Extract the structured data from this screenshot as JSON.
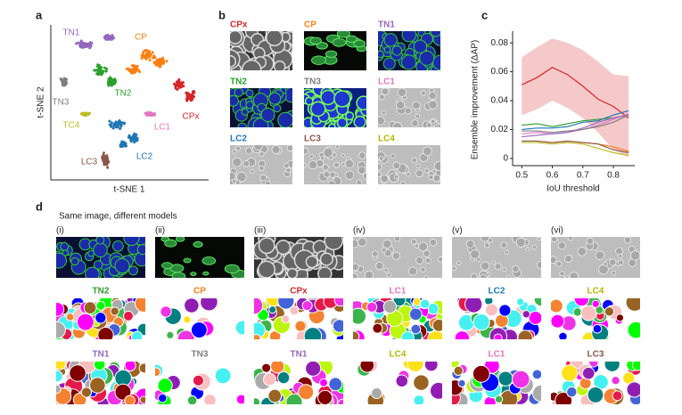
{
  "panel_labels": [
    "a",
    "b",
    "c",
    "d"
  ],
  "tsne": {
    "xlabel": "t-SNE 1",
    "ylabel": "t-SNE 2",
    "clusters": [
      {
        "name": "TN1",
        "color": "#9467bd"
      },
      {
        "name": "CP",
        "color": "#ff7f0e"
      },
      {
        "name": "TN2",
        "color": "#2ca02c"
      },
      {
        "name": "TN3",
        "color": "#7f7f7f"
      },
      {
        "name": "CPx",
        "color": "#d62728"
      },
      {
        "name": "TC4",
        "color": "#bcbd22"
      },
      {
        "name": "LC1",
        "color": "#e377c2"
      },
      {
        "name": "LC2",
        "color": "#1f77b4"
      },
      {
        "name": "LC3",
        "color": "#8c564b"
      }
    ]
  },
  "image_grid": {
    "cells": [
      {
        "label": "CPx",
        "color": "#d62728"
      },
      {
        "label": "CP",
        "color": "#ff7f0e"
      },
      {
        "label": "TN1",
        "color": "#9467bd"
      },
      {
        "label": "TN2",
        "color": "#2ca02c"
      },
      {
        "label": "TN3",
        "color": "#7f7f7f"
      },
      {
        "label": "LC1",
        "color": "#e377c2"
      },
      {
        "label": "LC2",
        "color": "#1f77b4"
      },
      {
        "label": "LC3",
        "color": "#8c564b"
      },
      {
        "label": "LC4",
        "color": "#b5b800"
      }
    ]
  },
  "chart_data": {
    "type": "line",
    "xlabel": "IoU threshold",
    "ylabel": "Ensemble improvement (ΔAP)",
    "x": [
      0.5,
      0.55,
      0.6,
      0.65,
      0.7,
      0.75,
      0.8,
      0.85
    ],
    "xlim": [
      0.47,
      0.87
    ],
    "ylim": [
      -0.005,
      0.085
    ],
    "xticks": [
      0.5,
      0.6,
      0.7,
      0.8
    ],
    "yticks": [
      0,
      0.02,
      0.04,
      0.06,
      0.08
    ],
    "series": [
      {
        "color": "#d62728",
        "values": [
          0.051,
          0.056,
          0.063,
          0.058,
          0.05,
          0.041,
          0.036,
          0.028
        ],
        "lower": [
          0.03,
          0.034,
          0.04,
          0.035,
          0.028,
          0.018,
          0.006,
          0.001
        ],
        "upper": [
          0.07,
          0.077,
          0.083,
          0.08,
          0.075,
          0.067,
          0.058,
          0.057
        ]
      },
      {
        "color": "#2ca02c",
        "values": [
          0.023,
          0.024,
          0.022,
          0.024,
          0.026,
          0.027,
          0.028,
          0.03
        ]
      },
      {
        "color": "#1f77b4",
        "values": [
          0.02,
          0.021,
          0.021,
          0.022,
          0.025,
          0.026,
          0.03,
          0.033
        ]
      },
      {
        "color": "#e377c2",
        "values": [
          0.017,
          0.018,
          0.017,
          0.018,
          0.02,
          0.023,
          0.027,
          0.031
        ]
      },
      {
        "color": "#9467bd",
        "values": [
          0.015,
          0.016,
          0.017,
          0.018,
          0.021,
          0.025,
          0.028,
          0.03
        ]
      },
      {
        "color": "#7f7f7f",
        "values": [
          0.019,
          0.019,
          0.018,
          0.019,
          0.02,
          0.022,
          0.025,
          0.03
        ]
      },
      {
        "color": "#ff7f0e",
        "values": [
          0.012,
          0.012,
          0.011,
          0.012,
          0.011,
          0.01,
          0.008,
          0.005
        ]
      },
      {
        "color": "#8c564b",
        "values": [
          0.012,
          0.012,
          0.011,
          0.012,
          0.011,
          0.01,
          0.006,
          0.004
        ]
      },
      {
        "color": "#bcbd22",
        "values": [
          0.011,
          0.011,
          0.01,
          0.011,
          0.01,
          0.007,
          0.004,
          0.002
        ]
      }
    ]
  },
  "comparison": {
    "title": "Same image, different models",
    "columns": [
      {
        "numeral": "(i)",
        "top": {
          "label": "TN2",
          "color": "#2ca02c"
        },
        "bottom": {
          "label": "TN1",
          "color": "#9467bd"
        }
      },
      {
        "numeral": "(ii)",
        "top": {
          "label": "CP",
          "color": "#ff7f0e"
        },
        "bottom": {
          "label": "TN3",
          "color": "#7f7f7f"
        }
      },
      {
        "numeral": "(iii)",
        "top": {
          "label": "CPx",
          "color": "#d62728"
        },
        "bottom": {
          "label": "TN1",
          "color": "#9467bd"
        }
      },
      {
        "numeral": "(iv)",
        "top": {
          "label": "LC1",
          "color": "#e377c2"
        },
        "bottom": {
          "label": "LC4",
          "color": "#b5b800"
        }
      },
      {
        "numeral": "(v)",
        "top": {
          "label": "LC2",
          "color": "#1f77b4"
        },
        "bottom": {
          "label": "LC1",
          "color": "#e377c2"
        }
      },
      {
        "numeral": "(vi)",
        "top": {
          "label": "LC4",
          "color": "#b5b800"
        },
        "bottom": {
          "label": "LC3",
          "color": "#8c564b"
        }
      }
    ]
  }
}
